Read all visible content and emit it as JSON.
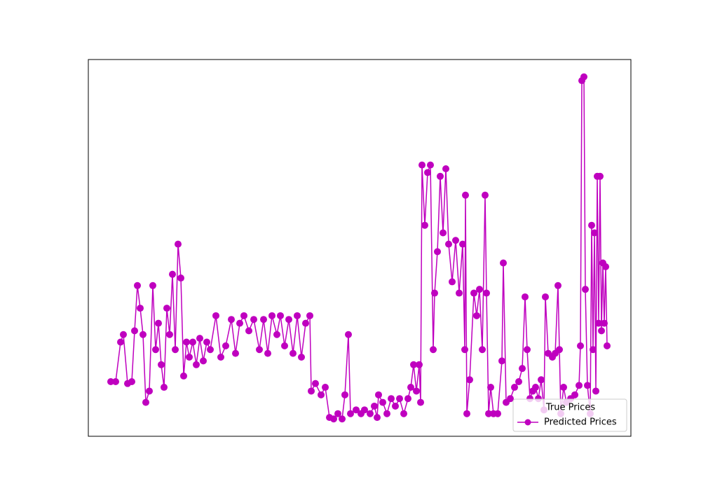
{
  "chart_data": {
    "type": "line",
    "legend_title": "True Prices",
    "legend": "lower right",
    "xlim": [
      -32,
      742
    ],
    "ylim": [
      0,
      100
    ],
    "x": [
      0,
      7,
      14,
      18,
      24,
      30,
      34,
      38,
      42,
      46,
      50,
      55,
      60,
      64,
      68,
      72,
      76,
      80,
      84,
      88,
      92,
      96,
      100,
      104,
      108,
      112,
      117,
      122,
      127,
      132,
      137,
      142,
      150,
      157,
      164,
      172,
      178,
      184,
      190,
      197,
      204,
      212,
      218,
      224,
      230,
      237,
      242,
      248,
      254,
      260,
      266,
      272,
      278,
      284,
      286,
      292,
      300,
      306,
      312,
      318,
      324,
      330,
      334,
      339,
      342,
      350,
      357,
      362,
      370,
      376,
      380,
      382,
      388,
      394,
      400,
      406,
      412,
      418,
      424,
      428,
      432,
      436,
      440,
      442,
      444,
      448,
      452,
      456,
      460,
      462,
      466,
      470,
      474,
      478,
      482,
      487,
      492,
      497,
      502,
      505,
      506,
      508,
      512,
      518,
      522,
      526,
      530,
      534,
      536,
      539,
      542,
      546,
      552,
      558,
      560,
      564,
      570,
      576,
      582,
      587,
      591,
      594,
      598,
      602,
      606,
      610,
      614,
      618,
      620,
      624,
      630,
      634,
      638,
      640,
      642,
      646,
      650,
      656,
      662,
      668,
      670,
      672,
      675,
      677,
      680,
      684,
      686,
      688,
      690,
      692,
      694,
      696,
      698,
      700,
      702,
      704,
      706,
      708
    ],
    "series": [
      {
        "name": "Predicted Prices",
        "color": "#bf00bf",
        "marker": "o",
        "values": [
          14.5,
          14.5,
          25,
          27,
          14,
          14.5,
          28,
          40,
          34,
          27,
          9,
          12,
          40,
          23,
          30,
          19,
          13,
          34,
          27,
          43,
          23,
          51,
          42,
          16,
          25,
          21,
          25,
          19,
          26,
          20,
          25,
          23,
          32,
          21,
          24,
          31,
          22,
          30,
          32,
          28,
          31,
          23,
          31,
          22,
          32,
          27,
          32,
          24,
          31,
          22,
          32,
          21,
          30,
          32,
          12,
          14,
          11,
          13,
          5,
          4.6,
          6,
          4.6,
          11,
          27,
          6,
          7,
          6,
          7,
          6,
          8,
          5,
          11,
          9,
          6,
          10,
          8,
          10,
          6,
          10,
          13,
          19,
          12,
          19,
          9,
          72,
          56,
          70,
          72,
          23,
          38,
          49,
          69,
          54,
          71,
          51,
          41,
          52,
          38,
          51,
          23,
          64,
          6,
          15,
          38,
          32,
          39,
          23,
          64,
          38,
          6,
          13,
          6,
          6,
          20,
          46,
          9,
          10,
          13,
          14.5,
          18,
          37,
          23,
          10,
          12,
          13,
          10,
          15,
          7,
          37,
          22,
          21,
          22,
          40,
          23,
          6,
          13,
          9,
          10,
          11,
          13.5,
          24,
          94.4,
          95.4,
          39,
          13.5,
          6,
          56,
          23,
          54,
          12,
          69,
          30,
          69,
          28,
          46,
          30,
          45,
          24
        ]
      }
    ]
  }
}
